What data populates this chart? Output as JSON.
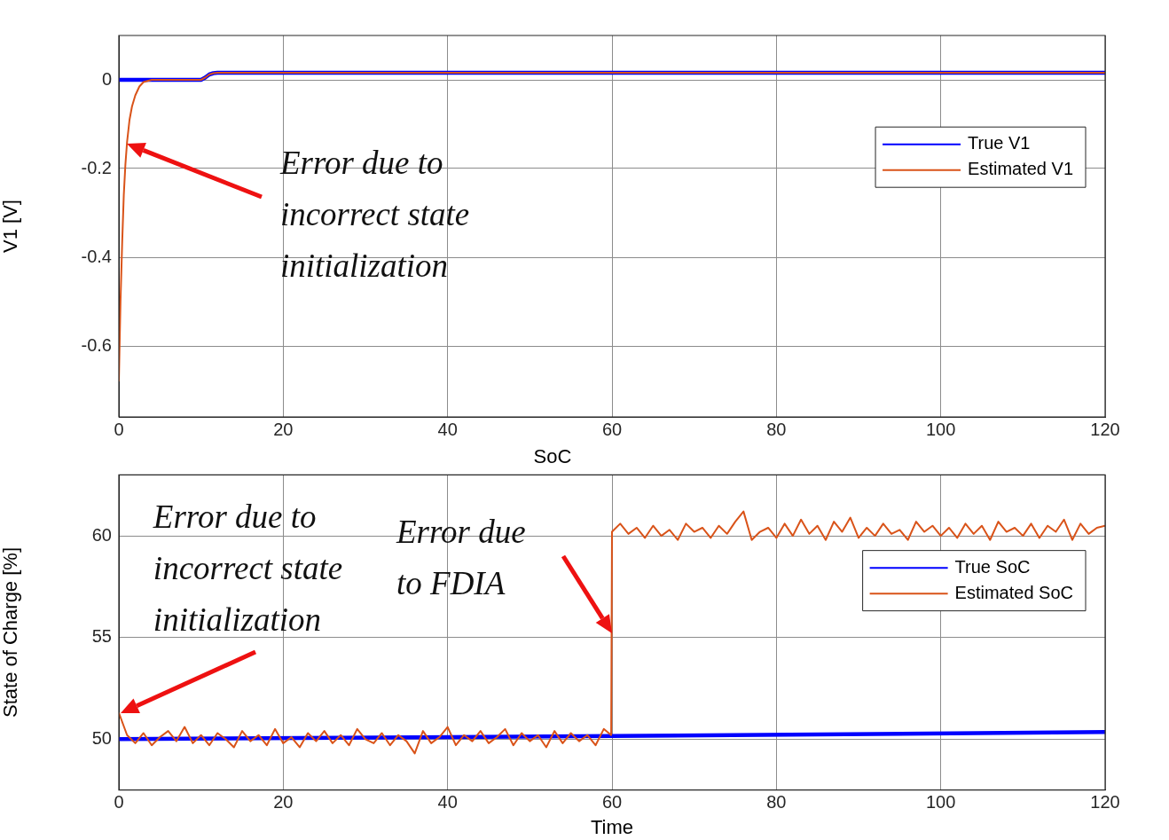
{
  "chart_data": [
    {
      "type": "line",
      "ylabel": "V1 [V]",
      "xlim": [
        0,
        120
      ],
      "xticks": [
        0,
        20,
        40,
        60,
        80,
        100,
        120
      ],
      "ylim": [
        -0.76,
        0.1
      ],
      "yticks": [
        0,
        -0.2,
        -0.4,
        -0.6
      ],
      "grid": true,
      "legend": "top right",
      "marker": "none",
      "line_style": "solid",
      "annotations": [
        "Error due to incorrect state initialization"
      ],
      "series": [
        {
          "name": "True V1",
          "color": "#0000ff",
          "x": [
            0,
            10,
            10.5,
            11,
            11.5,
            12,
            120
          ],
          "values": [
            0,
            0,
            0.005,
            0.012,
            0.015,
            0.016,
            0.016
          ]
        },
        {
          "name": "Estimated V1",
          "color": "#d95319",
          "x": [
            0,
            0.2,
            0.4,
            0.6,
            0.8,
            1,
            1.3,
            1.6,
            2,
            2.5,
            3,
            4,
            10,
            10.5,
            11,
            11.5,
            12,
            120
          ],
          "values": [
            -0.68,
            -0.5,
            -0.37,
            -0.26,
            -0.19,
            -0.14,
            -0.09,
            -0.06,
            -0.035,
            -0.015,
            -0.005,
            0,
            0,
            0.005,
            0.012,
            0.015,
            0.016,
            0.016
          ]
        }
      ]
    },
    {
      "type": "line",
      "title": "SoC",
      "xlabel": "Time",
      "ylabel": "State of Charge [%]",
      "xlim": [
        0,
        120
      ],
      "xticks": [
        0,
        20,
        40,
        60,
        80,
        100,
        120
      ],
      "ylim": [
        47.5,
        63
      ],
      "yticks": [
        50,
        55,
        60
      ],
      "grid": true,
      "legend": "top right",
      "marker": "none",
      "line_style": "solid",
      "annotations": [
        {
          "text": "Error due to incorrect state initialization",
          "x": 0.2,
          "y": 51.3
        },
        {
          "text": "Error due to FDIA",
          "x": 60,
          "y": 55.2
        }
      ],
      "series": [
        {
          "name": "True SoC",
          "color": "#0000ff",
          "x": [
            0,
            60,
            120
          ],
          "values": [
            50,
            50.15,
            50.35
          ]
        },
        {
          "name": "Estimated SoC",
          "color": "#d95319",
          "x": [
            0,
            1,
            2,
            3,
            4,
            5,
            6,
            7,
            8,
            9,
            10,
            11,
            12,
            13,
            14,
            15,
            16,
            17,
            18,
            19,
            20,
            21,
            22,
            23,
            24,
            25,
            26,
            27,
            28,
            29,
            30,
            31,
            32,
            33,
            34,
            35,
            36,
            37,
            38,
            39,
            40,
            41,
            42,
            43,
            44,
            45,
            46,
            47,
            48,
            49,
            50,
            51,
            52,
            53,
            54,
            55,
            56,
            57,
            58,
            59,
            59.9,
            60,
            61,
            62,
            63,
            64,
            65,
            66,
            67,
            68,
            69,
            70,
            71,
            72,
            73,
            74,
            75,
            76,
            77,
            78,
            79,
            80,
            81,
            82,
            83,
            84,
            85,
            86,
            87,
            88,
            89,
            90,
            91,
            92,
            93,
            94,
            95,
            96,
            97,
            98,
            99,
            100,
            101,
            102,
            103,
            104,
            105,
            106,
            107,
            108,
            109,
            110,
            111,
            112,
            113,
            114,
            115,
            116,
            117,
            118,
            119,
            120
          ],
          "values": [
            51.3,
            50.2,
            49.8,
            50.3,
            49.7,
            50.1,
            50.4,
            49.9,
            50.6,
            49.8,
            50.2,
            49.7,
            50.3,
            50.0,
            49.6,
            50.4,
            49.9,
            50.2,
            49.7,
            50.5,
            49.8,
            50.1,
            49.6,
            50.3,
            49.9,
            50.4,
            49.8,
            50.2,
            49.7,
            50.5,
            50.0,
            49.8,
            50.3,
            49.7,
            50.2,
            49.9,
            49.3,
            50.4,
            49.8,
            50.1,
            50.6,
            49.7,
            50.2,
            49.9,
            50.4,
            49.8,
            50.1,
            50.5,
            49.7,
            50.3,
            49.9,
            50.2,
            49.6,
            50.4,
            49.8,
            50.3,
            49.9,
            50.2,
            49.7,
            50.5,
            50.2,
            60.2,
            60.6,
            60.1,
            60.4,
            59.9,
            60.5,
            60.0,
            60.3,
            59.8,
            60.6,
            60.2,
            60.4,
            59.9,
            60.5,
            60.1,
            60.7,
            61.2,
            59.8,
            60.2,
            60.4,
            59.9,
            60.6,
            60.0,
            60.8,
            60.1,
            60.5,
            59.8,
            60.7,
            60.2,
            60.9,
            59.9,
            60.4,
            60.0,
            60.6,
            60.1,
            60.3,
            59.8,
            60.7,
            60.2,
            60.5,
            60.0,
            60.4,
            59.9,
            60.6,
            60.1,
            60.5,
            59.8,
            60.7,
            60.2,
            60.4,
            60.0,
            60.6,
            59.9,
            60.5,
            60.2,
            60.8,
            59.8,
            60.6,
            60.1,
            60.4,
            60.5
          ]
        }
      ]
    }
  ]
}
